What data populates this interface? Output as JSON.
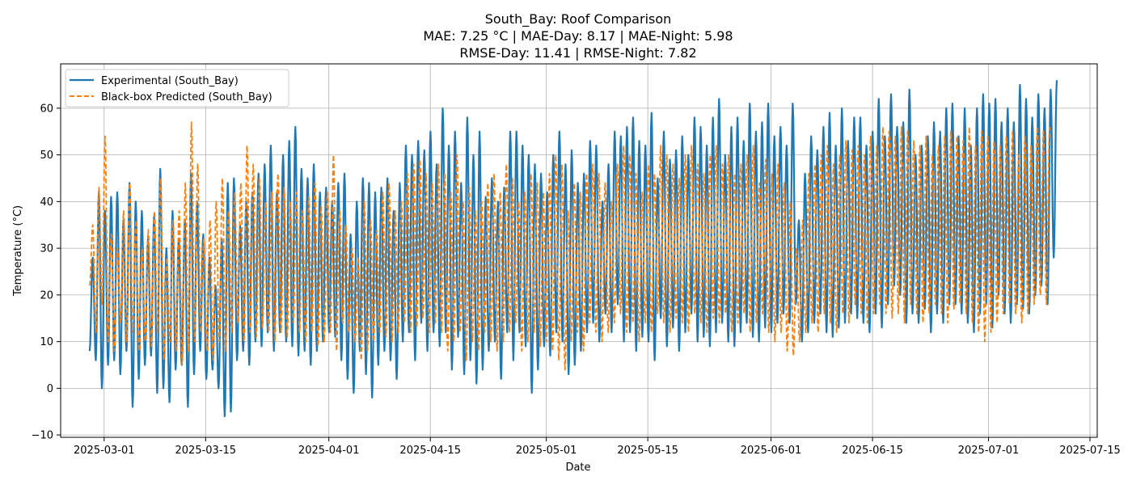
{
  "chart_data": {
    "type": "line",
    "title_lines": [
      "South_Bay: Roof Comparison",
      "MAE: 7.25 °C | MAE-Day: 8.17 | MAE-Night: 5.98",
      "RMSE-Day: 11.41 | RMSE-Night: 7.82"
    ],
    "xlabel": "Date",
    "ylabel": "Temperature (°C)",
    "xlim": [
      "2025-02-23",
      "2025-07-16"
    ],
    "ylim": [
      -10.5,
      69.5
    ],
    "x_ticks": [
      "2025-03-01",
      "2025-03-15",
      "2025-04-01",
      "2025-04-15",
      "2025-05-01",
      "2025-05-15",
      "2025-06-01",
      "2025-06-15",
      "2025-07-01",
      "2025-07-15"
    ],
    "y_ticks": [
      -10,
      0,
      10,
      20,
      30,
      40,
      50,
      60
    ],
    "grid": true,
    "legend_position": "top-left",
    "series": [
      {
        "name": "Experimental (South_Bay)",
        "color": "#1f77b4",
        "style": "solid",
        "x_start": "2025-02-27",
        "x_end": "2025-07-10",
        "daily_max": [
          28,
          42,
          38,
          41,
          42,
          36,
          44,
          40,
          38,
          32,
          37,
          47,
          30,
          38,
          32,
          36,
          46,
          40,
          33,
          28,
          22,
          32,
          44,
          45,
          35,
          40,
          42,
          46,
          48,
          52,
          42,
          50,
          53,
          56,
          47,
          45,
          48,
          42,
          43,
          40,
          44,
          46,
          33,
          40,
          45,
          44,
          42,
          43,
          45,
          38,
          44,
          52,
          50,
          53,
          51,
          55,
          48,
          60,
          52,
          55,
          44,
          58,
          50,
          55,
          41,
          45,
          40,
          43,
          55,
          55,
          52,
          50,
          48,
          46,
          42,
          50,
          55,
          48,
          51,
          44,
          46,
          53,
          52,
          40,
          48,
          55,
          54,
          56,
          58,
          53,
          52,
          59,
          45,
          55,
          49,
          51,
          54,
          50,
          58,
          56,
          52,
          58,
          62,
          50,
          56,
          58,
          53,
          61,
          55,
          57,
          61,
          54,
          56,
          52,
          61,
          36,
          46,
          54,
          51,
          56,
          59,
          52,
          60,
          53,
          58,
          58,
          52,
          55,
          62,
          54,
          63,
          56,
          57,
          64,
          50,
          52,
          54,
          57,
          55,
          60,
          61,
          54,
          60,
          52,
          60,
          63,
          61,
          62,
          57,
          60,
          57,
          65,
          62,
          58,
          63,
          60,
          64,
          66,
          32
        ],
        "daily_min": [
          8,
          6,
          0,
          5,
          6,
          3,
          8,
          -4,
          2,
          5,
          7,
          -1,
          0,
          -3,
          4,
          5,
          -4,
          3,
          8,
          2,
          4,
          0,
          -6,
          -5,
          6,
          8,
          5,
          10,
          9,
          12,
          8,
          12,
          10,
          9,
          7,
          8,
          5,
          8,
          10,
          12,
          11,
          6,
          2,
          -1,
          8,
          3,
          -2,
          5,
          8,
          6,
          2,
          10,
          12,
          6,
          14,
          8,
          12,
          9,
          12,
          4,
          11,
          3,
          6,
          1,
          4,
          8,
          10,
          2,
          12,
          6,
          12,
          9,
          -1,
          4,
          9,
          7,
          12,
          10,
          3,
          5,
          8,
          12,
          14,
          10,
          16,
          12,
          18,
          10,
          12,
          8,
          11,
          10,
          6,
          15,
          9,
          13,
          8,
          12,
          16,
          10,
          11,
          9,
          12,
          14,
          10,
          9,
          12,
          14,
          11,
          10,
          13,
          12,
          14,
          16,
          14,
          18,
          10,
          12,
          14,
          16,
          12,
          11,
          13,
          14,
          16,
          15,
          14,
          12,
          16,
          13,
          18,
          22,
          20,
          14,
          16,
          14,
          17,
          12,
          16,
          14,
          18,
          18,
          16,
          14,
          12,
          16,
          18,
          13,
          20,
          16,
          14,
          18,
          17,
          16,
          20,
          22,
          18,
          28
        ]
      },
      {
        "name": "Black-box Predicted (South_Bay)",
        "color": "#ff7f0e",
        "style": "dashed",
        "x_start": "2025-02-27",
        "x_end": "2025-07-09",
        "daily_max": [
          35,
          43,
          54,
          33,
          30,
          38,
          44,
          36,
          30,
          34,
          38,
          45,
          28,
          36,
          38,
          44,
          57,
          48,
          32,
          36,
          40,
          45,
          38,
          42,
          44,
          52,
          48,
          45,
          40,
          42,
          46,
          43,
          40,
          42,
          38,
          41,
          44,
          39,
          42,
          50,
          38,
          35,
          30,
          28,
          40,
          36,
          34,
          42,
          44,
          38,
          40,
          46,
          48,
          49,
          46,
          44,
          48,
          46,
          42,
          50,
          40,
          43,
          38,
          40,
          44,
          46,
          42,
          48,
          45,
          40,
          42,
          46,
          44,
          42,
          46,
          50,
          48,
          38,
          44,
          42,
          46,
          48,
          46,
          44,
          40,
          48,
          52,
          50,
          46,
          42,
          48,
          46,
          52,
          50,
          48,
          45,
          50,
          52,
          48,
          46,
          50,
          52,
          48,
          50,
          46,
          48,
          50,
          52,
          44,
          49,
          46,
          48,
          44,
          40,
          30,
          36,
          46,
          48,
          50,
          52,
          48,
          50,
          53,
          51,
          52,
          50,
          54,
          52,
          56,
          55,
          54,
          56,
          55,
          53,
          52,
          54,
          50,
          52,
          54,
          55,
          54,
          53,
          56,
          52,
          55,
          54,
          53,
          52,
          54,
          55,
          50,
          54,
          52,
          56,
          55,
          56
        ],
        "daily_min": [
          22,
          12,
          18,
          10,
          8,
          14,
          10,
          12,
          8,
          10,
          9,
          12,
          6,
          10,
          8,
          5,
          8,
          10,
          12,
          8,
          6,
          10,
          8,
          12,
          14,
          10,
          12,
          11,
          13,
          12,
          10,
          12,
          11,
          14,
          12,
          10,
          12,
          9,
          10,
          12,
          8,
          14,
          12,
          10,
          6,
          8,
          10,
          12,
          11,
          10,
          12,
          14,
          12,
          13,
          15,
          12,
          14,
          12,
          8,
          10,
          12,
          6,
          10,
          8,
          12,
          10,
          8,
          10,
          12,
          14,
          8,
          10,
          12,
          9,
          10,
          8,
          6,
          4,
          10,
          12,
          8,
          14,
          12,
          10,
          12,
          14,
          16,
          12,
          14,
          10,
          14,
          12,
          16,
          14,
          12,
          15,
          14,
          12,
          16,
          14,
          12,
          15,
          14,
          16,
          12,
          14,
          16,
          12,
          14,
          16,
          12,
          10,
          12,
          8,
          7,
          10,
          12,
          14,
          12,
          16,
          14,
          12,
          16,
          14,
          18,
          16,
          14,
          16,
          18,
          16,
          15,
          16,
          14,
          18,
          16,
          14,
          16,
          18,
          16,
          14,
          17,
          18,
          16,
          14,
          12,
          10,
          12,
          14,
          16,
          18,
          16,
          14,
          16,
          18,
          20,
          18
        ]
      }
    ]
  }
}
